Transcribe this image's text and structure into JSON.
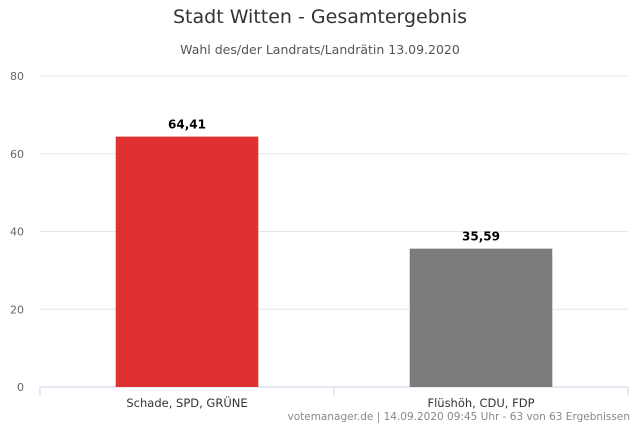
{
  "chart_data": {
    "type": "bar",
    "title": "Stadt Witten - Gesamtergebnis",
    "subtitle": "Wahl des/der Landrats/Landrätin 13.09.2020",
    "categories": [
      "Schade, SPD, GRÜNE",
      "Flüshöh, CDU, FDP"
    ],
    "values": [
      64.41,
      35.59
    ],
    "data_labels": [
      "64,41",
      "35,59"
    ],
    "colors": [
      "#e03131",
      "#7b7b7b"
    ],
    "ylim": [
      0,
      80
    ],
    "yticks": [
      0,
      20,
      40,
      60,
      80
    ],
    "grid": true,
    "legend": false,
    "xlabel": "",
    "ylabel": ""
  },
  "credits": "votemanager.de | 14.09.2020 09:45 Uhr - 63 von 63 Ergebnissen"
}
